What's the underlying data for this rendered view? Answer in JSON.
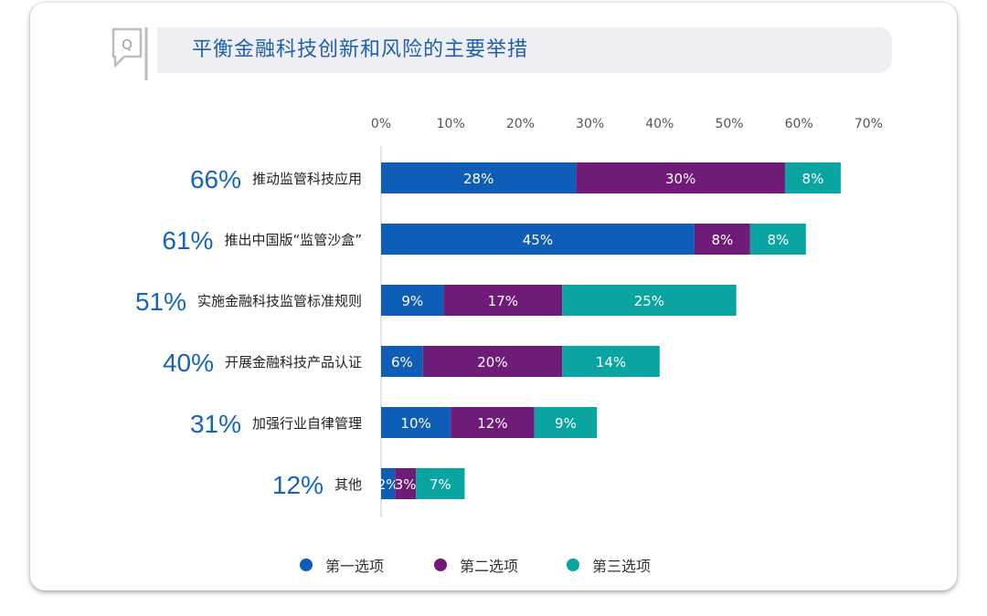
{
  "title": "平衡金融科技创新和风险的主要举措",
  "icon_letter": "Q",
  "colors": {
    "first": "#0e5eb7",
    "second": "#6f1c78",
    "third": "#0aa5a1",
    "title": "#1f5fae",
    "total": "#1565b9"
  },
  "legend": [
    {
      "label": "第一选项",
      "color": "#0e5eb7"
    },
    {
      "label": "第二选项",
      "color": "#6f1c78"
    },
    {
      "label": "第三选项",
      "color": "#0aa5a1"
    }
  ],
  "chart_data": {
    "type": "bar",
    "orientation": "horizontal",
    "stacked": true,
    "xlim": [
      0,
      70
    ],
    "x_ticks": [
      "0%",
      "10%",
      "20%",
      "30%",
      "40%",
      "50%",
      "60%",
      "70%"
    ],
    "categories": [
      "推动监管科技应用",
      "推出中国版“监管沙盒”",
      "实施金融科技监管标准规则",
      "开展金融科技产品认证",
      "加强行业自律管理",
      "其他"
    ],
    "totals": [
      "66%",
      "61%",
      "51%",
      "40%",
      "31%",
      "12%"
    ],
    "series": [
      {
        "name": "第一选项",
        "values": [
          28,
          45,
          9,
          6,
          10,
          2
        ],
        "labels": [
          "28%",
          "45%",
          "9%",
          "6%",
          "10%",
          "2%"
        ]
      },
      {
        "name": "第二选项",
        "values": [
          30,
          8,
          17,
          20,
          12,
          3
        ],
        "labels": [
          "30%",
          "8%",
          "17%",
          "20%",
          "12%",
          "3%"
        ]
      },
      {
        "name": "第三选项",
        "values": [
          8,
          8,
          25,
          14,
          9,
          7
        ],
        "labels": [
          "8%",
          "8%",
          "25%",
          "14%",
          "9%",
          "7%"
        ]
      }
    ]
  }
}
